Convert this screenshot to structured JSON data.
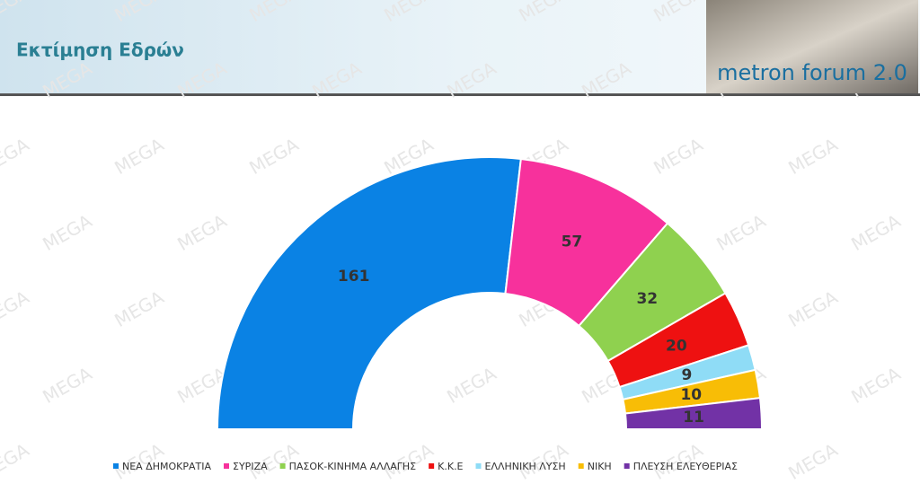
{
  "header": {
    "title": "Εκτίμηση Εδρών",
    "logo_text": "metron forum 2.0"
  },
  "watermark": "MEGA",
  "chart_data": {
    "type": "donut",
    "categories": [
      "ΝΕΑ ΔΗΜΟΚΡΑΤΙΑ",
      "ΣΥΡΙΖΑ",
      "ΠΑΣΟΚ-ΚΙΝΗΜΑ ΑΛΛΑΓΗΣ",
      "Κ.Κ.Ε",
      "ΕΛΛΗΝΙΚΗ ΛΥΣΗ",
      "ΝΙΚΗ",
      "ΠΛΕΥΣΗ ΕΛΕΥΘΕΡΙΑΣ"
    ],
    "values": [
      161,
      57,
      32,
      20,
      9,
      10,
      11
    ],
    "colors": [
      "#0a82e4",
      "#f7319c",
      "#8fd14f",
      "#ee1111",
      "#8fdcf6",
      "#f8bd06",
      "#7232a6"
    ]
  }
}
